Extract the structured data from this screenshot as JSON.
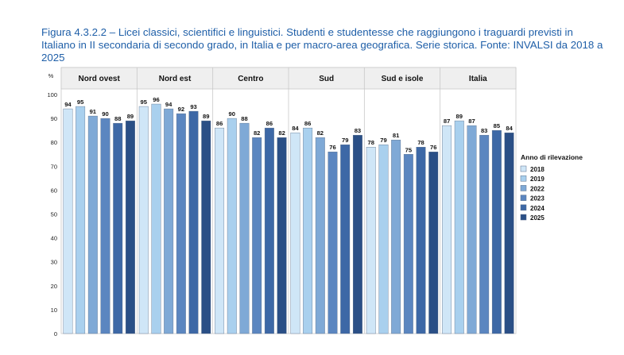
{
  "caption": "Figura 4.3.2.2 – Licei classici, scientifici e linguistici. Studenti e studentesse che raggiungono i traguardi previsti in Italiano in II secondaria di secondo grado, in Italia e per macro-area geografica. Serie storica. Fonte: INVALSI da 2018 a 2025",
  "chart_data": {
    "type": "bar",
    "ylabel": "%",
    "ylim": [
      0,
      100
    ],
    "yticks": [
      0,
      10,
      20,
      30,
      40,
      50,
      60,
      70,
      80,
      90,
      100
    ],
    "categories": [
      "Nord ovest",
      "Nord est",
      "Centro",
      "Sud",
      "Sud e isole",
      "Italia"
    ],
    "legend_title": "Anno di rilevazione",
    "legend_position": "right",
    "series": [
      {
        "name": "2018",
        "color": "#cfe6f7",
        "values": [
          94,
          95,
          86,
          84,
          78,
          87
        ]
      },
      {
        "name": "2019",
        "color": "#a9d0ee",
        "values": [
          95,
          96,
          90,
          86,
          79,
          89
        ]
      },
      {
        "name": "2022",
        "color": "#7fa9d6",
        "values": [
          91,
          94,
          88,
          82,
          81,
          87
        ]
      },
      {
        "name": "2023",
        "color": "#5b86c0",
        "values": [
          90,
          92,
          82,
          76,
          75,
          83
        ]
      },
      {
        "name": "2024",
        "color": "#3d68a6",
        "values": [
          88,
          93,
          86,
          79,
          78,
          85
        ]
      },
      {
        "name": "2025",
        "color": "#2a4f86",
        "values": [
          89,
          89,
          82,
          83,
          76,
          84
        ]
      }
    ]
  }
}
